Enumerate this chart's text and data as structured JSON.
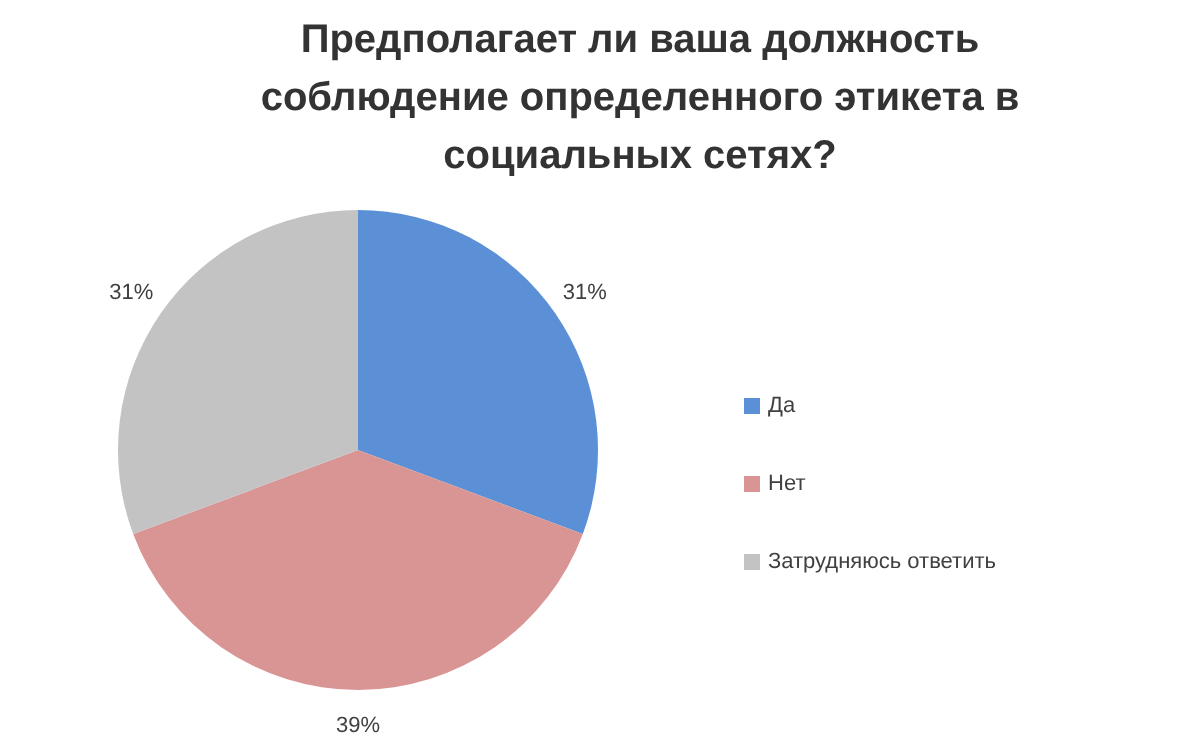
{
  "chart_data": {
    "type": "pie",
    "title": "Предполагает ли ваша должность соблюдение определенного этикета в социальных сетях?",
    "categories": [
      "Да",
      "Нет",
      "Затрудняюсь ответить"
    ],
    "values": [
      31,
      39,
      31
    ],
    "value_labels": [
      "31%",
      "39%",
      "31%"
    ],
    "colors": [
      "#5b8fd6",
      "#d99594",
      "#c3c3c3"
    ],
    "legend": "right"
  }
}
